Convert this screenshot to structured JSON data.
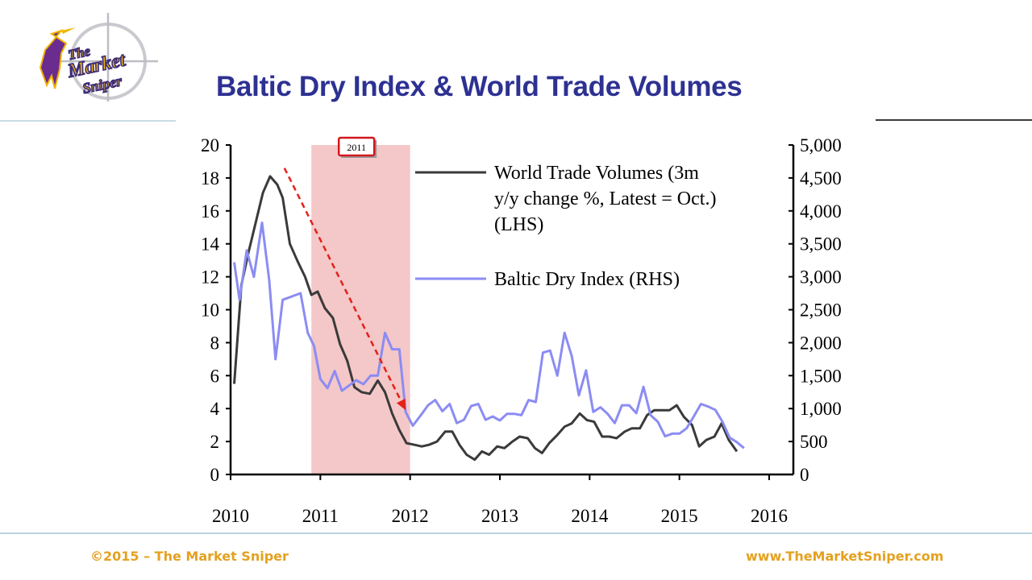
{
  "logo": {
    "line1": "The",
    "line2": "Market",
    "line3": "Sniper"
  },
  "title": "Baltic Dry Index & World Trade Volumes",
  "colors": {
    "title": "#2d3192",
    "shade": "#f4c7c8",
    "wtv": "#3a3a3a",
    "bdi": "#8b8cf3",
    "arrow": "#e32119",
    "footer": "#e4a11f"
  },
  "footer": {
    "left": "©2015 – The Market Sniper",
    "right": "www.TheMarketSniper.com"
  },
  "chart_data": {
    "type": "line",
    "x_ticks": [
      "2010",
      "2011",
      "2012",
      "2013",
      "2014",
      "2015",
      "2016"
    ],
    "xlim": [
      2010,
      2016
    ],
    "ylim_left": [
      0,
      20
    ],
    "ylim_right": [
      0,
      5000
    ],
    "y_left_ticks": [
      "0",
      "2",
      "4",
      "6",
      "8",
      "10",
      "12",
      "14",
      "16",
      "18",
      "20"
    ],
    "y_right_ticks": [
      "0",
      "500",
      "1,000",
      "1,500",
      "2,000",
      "2,500",
      "3,000",
      "3,500",
      "4,000",
      "4,500",
      "5,000"
    ],
    "legend": [
      {
        "name": "World Trade Volumes (3m y/y change %, Latest = Oct.) (LHS)",
        "lines": [
          "World Trade Volumes (3m",
          "y/y change %, Latest = Oct.)",
          "(LHS)"
        ]
      },
      {
        "name": "Baltic Dry Index (RHS)",
        "lines": [
          "Baltic Dry Index (RHS)"
        ]
      }
    ],
    "annotation": {
      "label": "2011",
      "x_start": 2010.9,
      "x_end": 2012.0
    },
    "trend_arrow": {
      "from": [
        2010.6,
        18.6
      ],
      "to": [
        2011.95,
        3.9
      ]
    },
    "series": [
      {
        "axis": "left",
        "points": [
          [
            2010.04,
            5.5
          ],
          [
            2010.12,
            11.5
          ],
          [
            2010.2,
            13.5
          ],
          [
            2010.28,
            15.3
          ],
          [
            2010.36,
            17.1
          ],
          [
            2010.44,
            18.1
          ],
          [
            2010.52,
            17.6
          ],
          [
            2010.58,
            16.8
          ],
          [
            2010.66,
            14.0
          ],
          [
            2010.75,
            12.9
          ],
          [
            2010.83,
            12.0
          ],
          [
            2010.9,
            10.9
          ],
          [
            2010.97,
            11.1
          ],
          [
            2011.05,
            10.1
          ],
          [
            2011.14,
            9.5
          ],
          [
            2011.22,
            7.9
          ],
          [
            2011.3,
            6.9
          ],
          [
            2011.38,
            5.3
          ],
          [
            2011.46,
            5.0
          ],
          [
            2011.55,
            4.9
          ],
          [
            2011.64,
            5.7
          ],
          [
            2011.72,
            5.0
          ],
          [
            2011.8,
            3.7
          ],
          [
            2011.88,
            2.7
          ],
          [
            2011.96,
            1.9
          ],
          [
            2012.05,
            1.8
          ],
          [
            2012.13,
            1.7
          ],
          [
            2012.21,
            1.8
          ],
          [
            2012.3,
            2.0
          ],
          [
            2012.39,
            2.6
          ],
          [
            2012.47,
            2.6
          ],
          [
            2012.55,
            1.8
          ],
          [
            2012.63,
            1.2
          ],
          [
            2012.72,
            0.9
          ],
          [
            2012.8,
            1.4
          ],
          [
            2012.88,
            1.2
          ],
          [
            2012.97,
            1.7
          ],
          [
            2013.05,
            1.6
          ],
          [
            2013.14,
            2.0
          ],
          [
            2013.22,
            2.3
          ],
          [
            2013.31,
            2.2
          ],
          [
            2013.39,
            1.6
          ],
          [
            2013.47,
            1.3
          ],
          [
            2013.55,
            1.9
          ],
          [
            2013.64,
            2.4
          ],
          [
            2013.72,
            2.9
          ],
          [
            2013.8,
            3.1
          ],
          [
            2013.89,
            3.7
          ],
          [
            2013.97,
            3.3
          ],
          [
            2014.05,
            3.2
          ],
          [
            2014.14,
            2.3
          ],
          [
            2014.22,
            2.3
          ],
          [
            2014.3,
            2.2
          ],
          [
            2014.39,
            2.6
          ],
          [
            2014.47,
            2.8
          ],
          [
            2014.56,
            2.8
          ],
          [
            2014.64,
            3.6
          ],
          [
            2014.72,
            3.9
          ],
          [
            2014.81,
            3.9
          ],
          [
            2014.89,
            3.9
          ],
          [
            2014.97,
            4.2
          ],
          [
            2015.05,
            3.5
          ],
          [
            2015.14,
            3.0
          ],
          [
            2015.22,
            1.7
          ],
          [
            2015.3,
            2.1
          ],
          [
            2015.39,
            2.3
          ],
          [
            2015.47,
            3.1
          ],
          [
            2015.55,
            2.1
          ],
          [
            2015.64,
            1.4
          ]
        ]
      },
      {
        "axis": "right",
        "points": [
          [
            2010.04,
            3220
          ],
          [
            2010.1,
            2650
          ],
          [
            2010.18,
            3400
          ],
          [
            2010.26,
            3000
          ],
          [
            2010.35,
            3820
          ],
          [
            2010.43,
            2950
          ],
          [
            2010.5,
            1750
          ],
          [
            2010.58,
            2650
          ],
          [
            2010.68,
            2700
          ],
          [
            2010.78,
            2750
          ],
          [
            2010.86,
            2150
          ],
          [
            2010.93,
            1950
          ],
          [
            2011.0,
            1450
          ],
          [
            2011.08,
            1310
          ],
          [
            2011.16,
            1570
          ],
          [
            2011.24,
            1270
          ],
          [
            2011.32,
            1350
          ],
          [
            2011.4,
            1430
          ],
          [
            2011.48,
            1370
          ],
          [
            2011.56,
            1500
          ],
          [
            2011.64,
            1500
          ],
          [
            2011.72,
            2150
          ],
          [
            2011.8,
            1900
          ],
          [
            2011.88,
            1900
          ],
          [
            2011.95,
            950
          ],
          [
            2012.03,
            740
          ],
          [
            2012.12,
            900
          ],
          [
            2012.2,
            1050
          ],
          [
            2012.28,
            1130
          ],
          [
            2012.36,
            960
          ],
          [
            2012.44,
            1070
          ],
          [
            2012.52,
            780
          ],
          [
            2012.6,
            830
          ],
          [
            2012.68,
            1040
          ],
          [
            2012.76,
            1070
          ],
          [
            2012.84,
            830
          ],
          [
            2012.92,
            880
          ],
          [
            2013.0,
            820
          ],
          [
            2013.08,
            920
          ],
          [
            2013.16,
            920
          ],
          [
            2013.24,
            900
          ],
          [
            2013.32,
            1130
          ],
          [
            2013.4,
            1100
          ],
          [
            2013.48,
            1850
          ],
          [
            2013.56,
            1880
          ],
          [
            2013.64,
            1500
          ],
          [
            2013.72,
            2150
          ],
          [
            2013.8,
            1800
          ],
          [
            2013.88,
            1200
          ],
          [
            2013.96,
            1580
          ],
          [
            2014.04,
            950
          ],
          [
            2014.12,
            1020
          ],
          [
            2014.2,
            920
          ],
          [
            2014.28,
            780
          ],
          [
            2014.36,
            1050
          ],
          [
            2014.44,
            1050
          ],
          [
            2014.52,
            930
          ],
          [
            2014.6,
            1330
          ],
          [
            2014.68,
            900
          ],
          [
            2014.76,
            800
          ],
          [
            2014.84,
            580
          ],
          [
            2014.92,
            620
          ],
          [
            2015.0,
            620
          ],
          [
            2015.08,
            700
          ],
          [
            2015.16,
            880
          ],
          [
            2015.24,
            1070
          ],
          [
            2015.32,
            1030
          ],
          [
            2015.4,
            980
          ],
          [
            2015.48,
            800
          ],
          [
            2015.56,
            560
          ],
          [
            2015.64,
            490
          ],
          [
            2015.72,
            400
          ]
        ]
      }
    ]
  }
}
